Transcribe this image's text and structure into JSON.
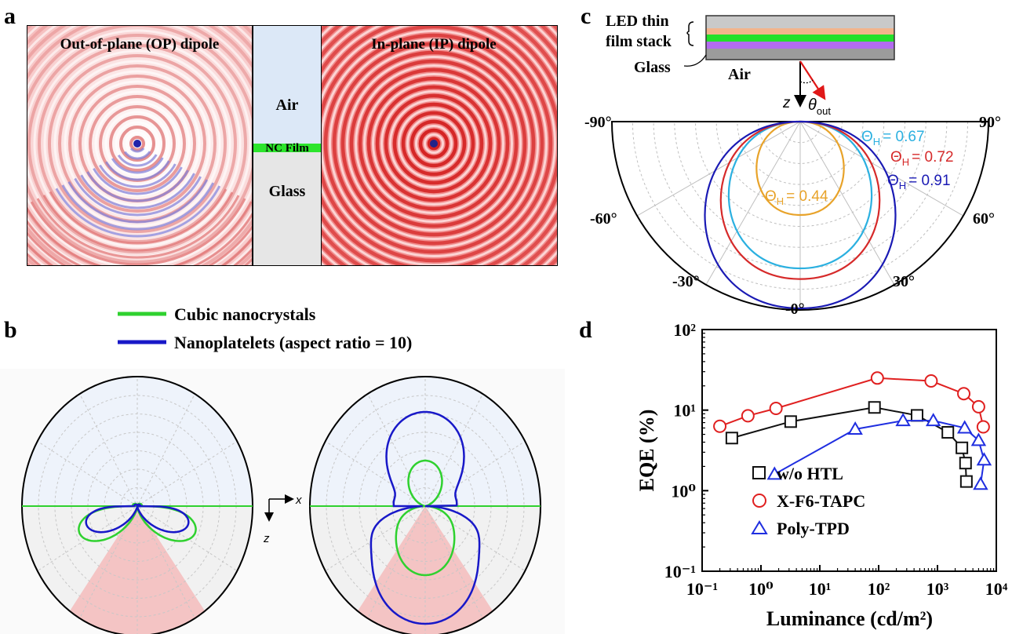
{
  "panels": {
    "a": {
      "letter": "a",
      "op_title": "Out-of-plane (OP) dipole",
      "ip_title": "In-plane (IP) dipole",
      "layers": {
        "air": "Air",
        "film": "NC Film",
        "glass": "Glass"
      }
    },
    "b": {
      "letter": "b",
      "legend": [
        {
          "name": "Cubic nanocrystals",
          "color": "#2fd12f"
        },
        {
          "name": "Nanoplatelets (aspect ratio = 10)",
          "color": "#1818c8"
        }
      ],
      "axis_x": "x",
      "axis_z": "z"
    },
    "c": {
      "letter": "c",
      "stack": {
        "label_line1": "LED thin",
        "label_line2": "film stack",
        "glass": "Glass",
        "air": "Air",
        "layer_colors": [
          "#c9c9c9",
          "#f2b48c",
          "#23e02a",
          "#b36cf0",
          "#9c9c9c"
        ]
      },
      "z_label": "z",
      "theta_label": "θ",
      "theta_sub": "out",
      "angle_labels": [
        "-90°",
        "90°",
        "-60°",
        "60°",
        "-30°",
        "30°",
        "-0°"
      ],
      "theta_h_symbol": "Θ",
      "theta_h_sub": "H",
      "curves": [
        {
          "value": "= 0.44",
          "theta_h": 0.44,
          "color": "#e8a32a"
        },
        {
          "value": "= 0.67",
          "theta_h": 0.67,
          "color": "#2bb0e0"
        },
        {
          "value": "= 0.72",
          "theta_h": 0.72,
          "color": "#d62a2a"
        },
        {
          "value": "= 0.91",
          "theta_h": 0.91,
          "color": "#1a1ab4"
        }
      ]
    }
  },
  "chart_data": [
    {
      "panel": "d",
      "letter": "d",
      "type": "scatter",
      "xlabel": "Luminance (cd/m²)",
      "ylabel": "EQE (%)",
      "xscale": "log",
      "yscale": "log",
      "xlim": [
        0.1,
        10000
      ],
      "ylim": [
        0.1,
        100
      ],
      "x_ticks": [
        "10⁻¹",
        "10⁰",
        "10¹",
        "10²",
        "10³",
        "10⁴"
      ],
      "y_ticks": [
        "10⁻¹",
        "10⁰",
        "10¹",
        "10²"
      ],
      "legend_position": "bottom-left",
      "series": [
        {
          "name": "w/o HTL",
          "color": "#111111",
          "marker": "square",
          "x": [
            0.32,
            3.2,
            85,
            450,
            1500,
            2600,
            3000,
            3100
          ],
          "y": [
            4.5,
            7.2,
            10.8,
            8.6,
            5.3,
            3.4,
            2.2,
            1.3
          ]
        },
        {
          "name": "X-F6-TAPC",
          "color": "#e02020",
          "marker": "circle",
          "x": [
            0.2,
            0.6,
            1.8,
            95,
            780,
            2800,
            5000,
            6000
          ],
          "y": [
            6.3,
            8.5,
            10.5,
            25,
            23,
            16,
            11,
            6.2
          ]
        },
        {
          "name": "Poly-TPD",
          "color": "#1f2ee0",
          "marker": "triangle",
          "x": [
            1.7,
            40,
            260,
            850,
            2900,
            5000,
            6200,
            5400
          ],
          "y": [
            1.6,
            5.8,
            7.4,
            7.4,
            6.0,
            4.2,
            2.4,
            1.2
          ]
        }
      ]
    },
    {
      "panel": "c",
      "type": "polar",
      "theta_range": [
        -90,
        90
      ],
      "series": [
        {
          "theta_h": 0.44,
          "color": "#e8a32a"
        },
        {
          "theta_h": 0.67,
          "color": "#2bb0e0"
        },
        {
          "theta_h": 0.72,
          "color": "#d62a2a"
        },
        {
          "theta_h": 0.91,
          "color": "#1a1ab4"
        }
      ]
    },
    {
      "panel": "b",
      "type": "polar",
      "series": [
        {
          "name": "Cubic nanocrystals",
          "color": "#2fd12f"
        },
        {
          "name": "Nanoplatelets (aspect ratio = 10)",
          "color": "#1818c8"
        }
      ]
    }
  ]
}
